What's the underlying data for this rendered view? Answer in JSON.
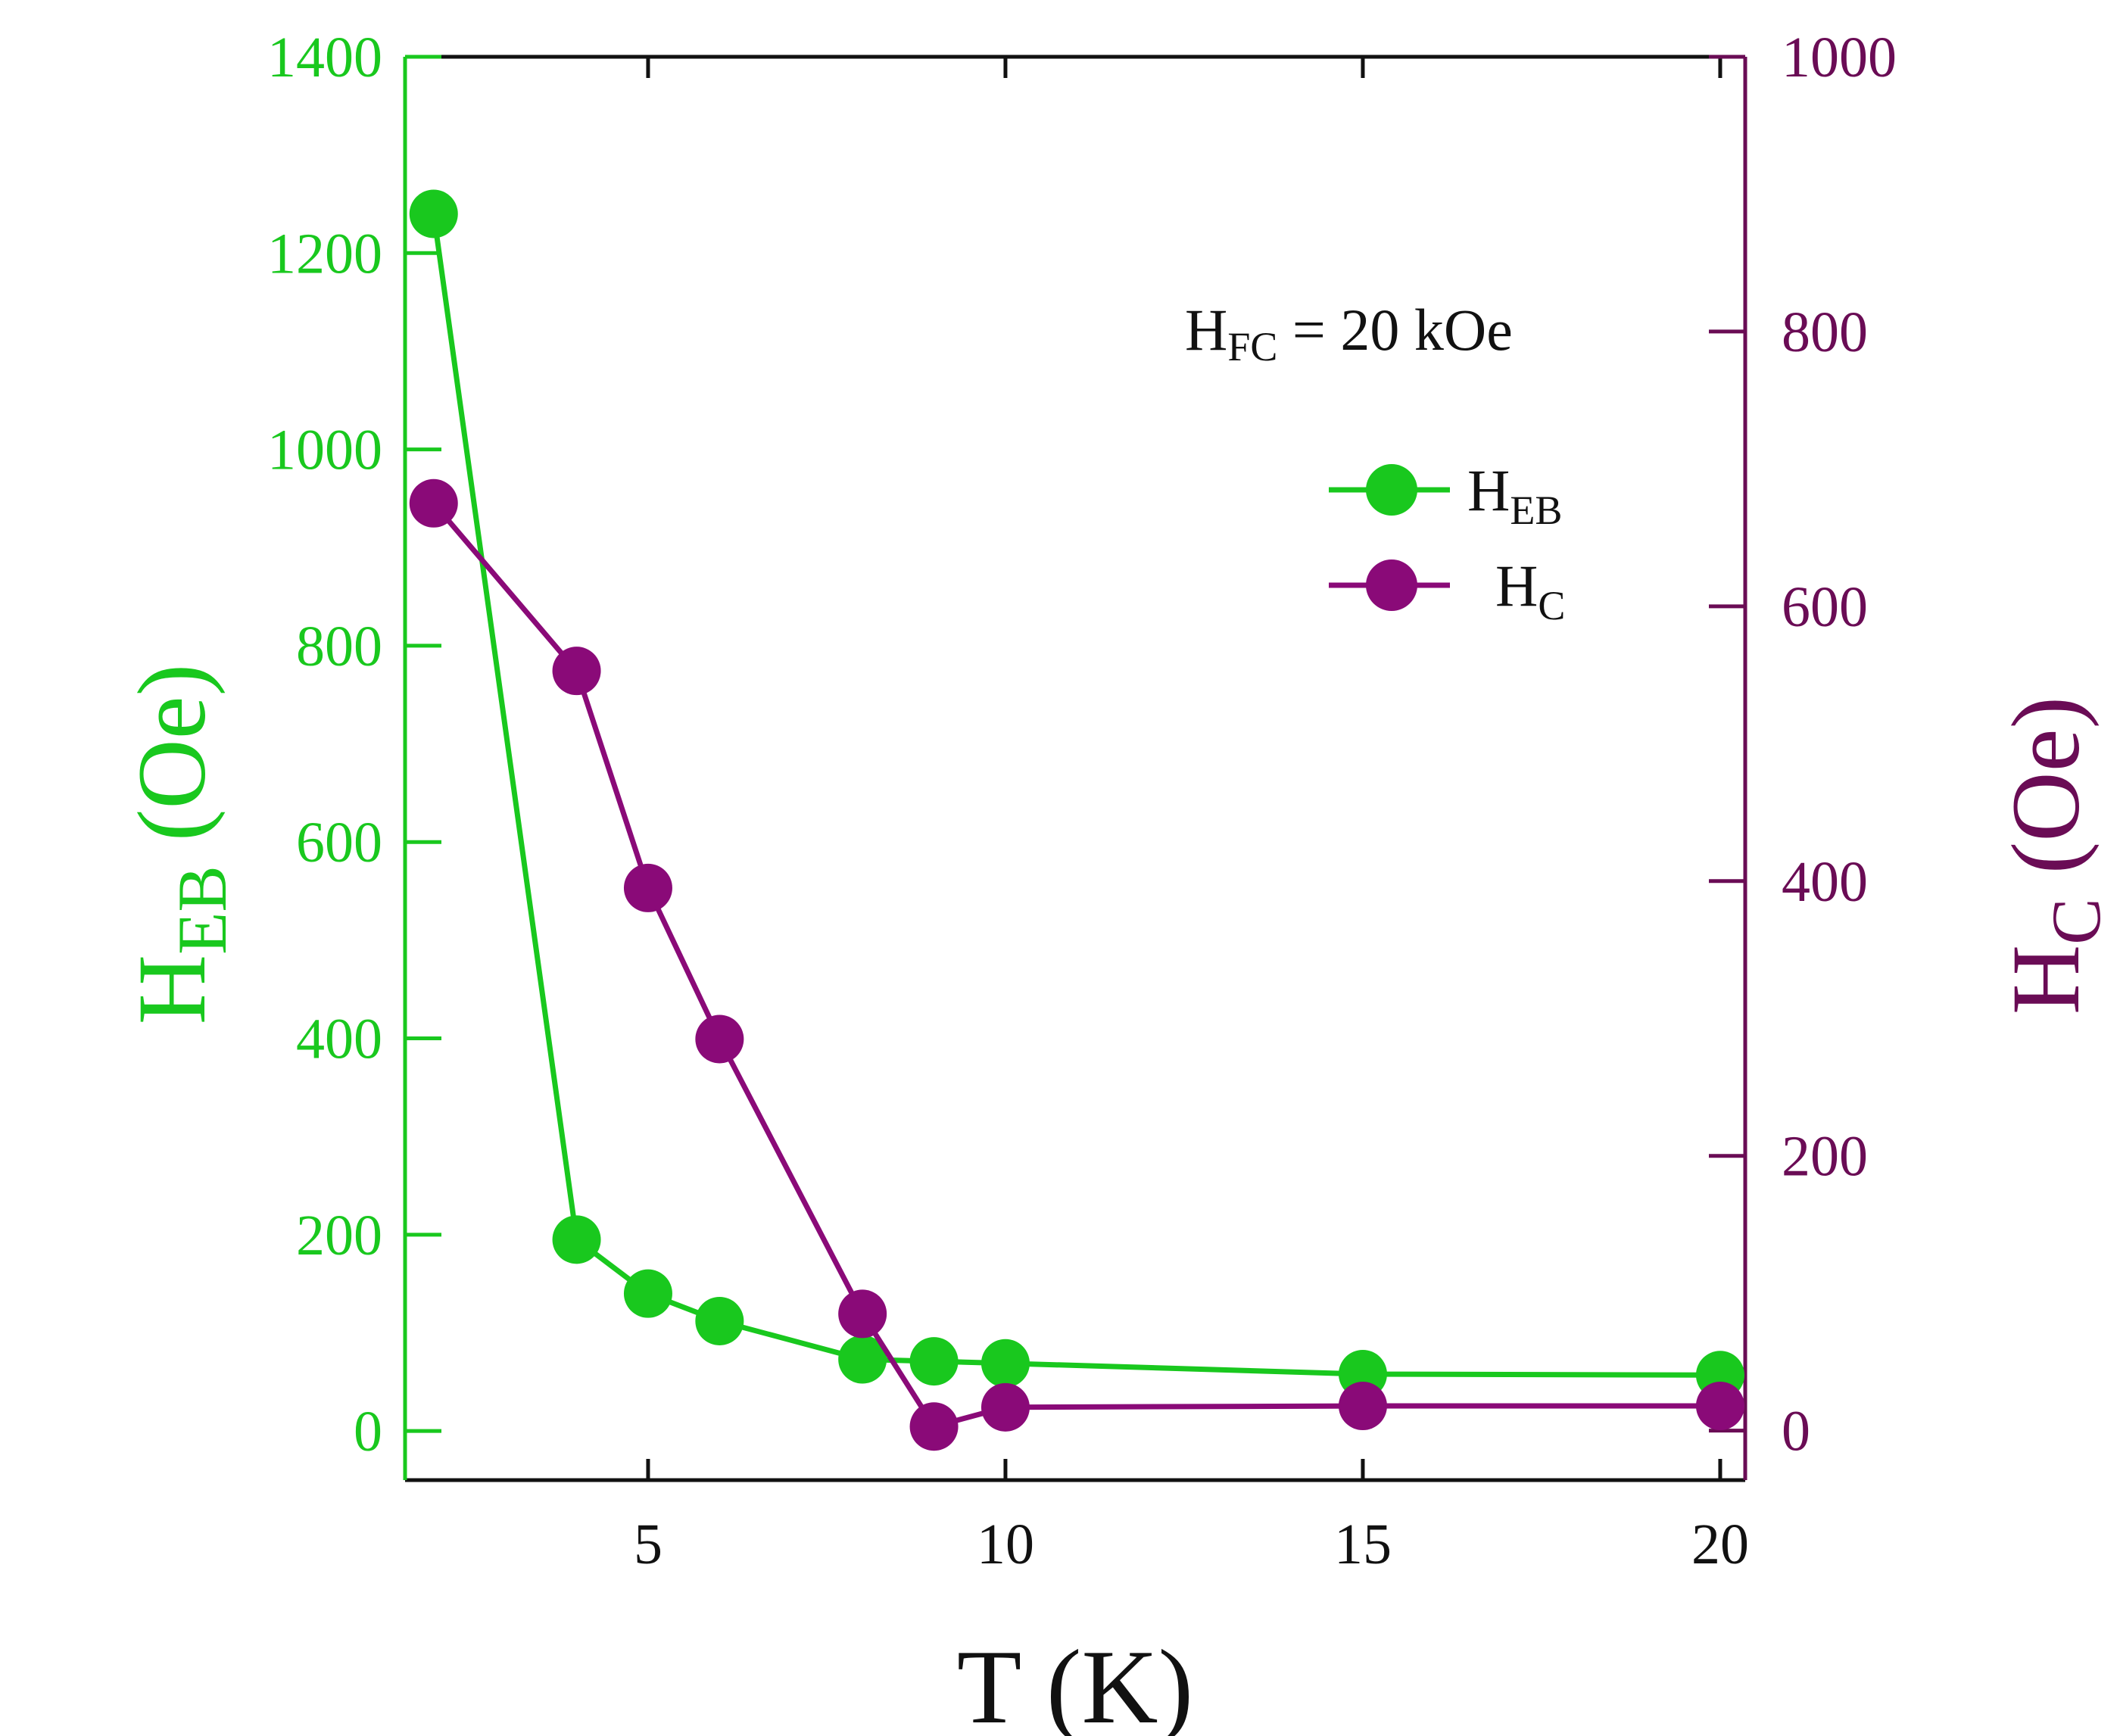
{
  "chart_data": {
    "type": "line",
    "annotation": {
      "main": "H",
      "sub": "FC",
      "rest": " = 20 kOe"
    },
    "xlabel": "T (K)",
    "xlim": [
      1.6,
      20.35
    ],
    "xticks": [
      5,
      10,
      15,
      20
    ],
    "left_axis": {
      "label_main": "H",
      "label_sub": "EB",
      "label_rest": " (Oe)",
      "lim": [
        -50,
        1400
      ],
      "ticks": [
        0,
        200,
        400,
        600,
        800,
        1000,
        1200,
        1400
      ],
      "color": "#19c81e"
    },
    "right_axis": {
      "label_main": "H",
      "label_sub": "C",
      "label_rest": " (Oe)",
      "lim": [
        -36,
        1000
      ],
      "ticks": [
        0,
        200,
        400,
        600,
        800,
        1000
      ],
      "color": "#6a0c55"
    },
    "series": [
      {
        "name_main": "H",
        "name_sub": "EB",
        "axis": "left",
        "color": "#19c81e",
        "x": [
          2,
          4,
          5,
          6,
          8,
          9,
          10,
          15,
          20
        ],
        "y": [
          1240,
          195,
          140,
          112,
          73,
          71,
          69,
          58,
          57
        ]
      },
      {
        "name_main": "H",
        "name_sub": "C",
        "axis": "right",
        "color": "#8a0a78",
        "x": [
          2,
          4,
          5,
          6,
          8,
          9,
          10,
          15,
          20
        ],
        "y": [
          675,
          553,
          395,
          285,
          85,
          3,
          17,
          18,
          18
        ]
      }
    ]
  }
}
